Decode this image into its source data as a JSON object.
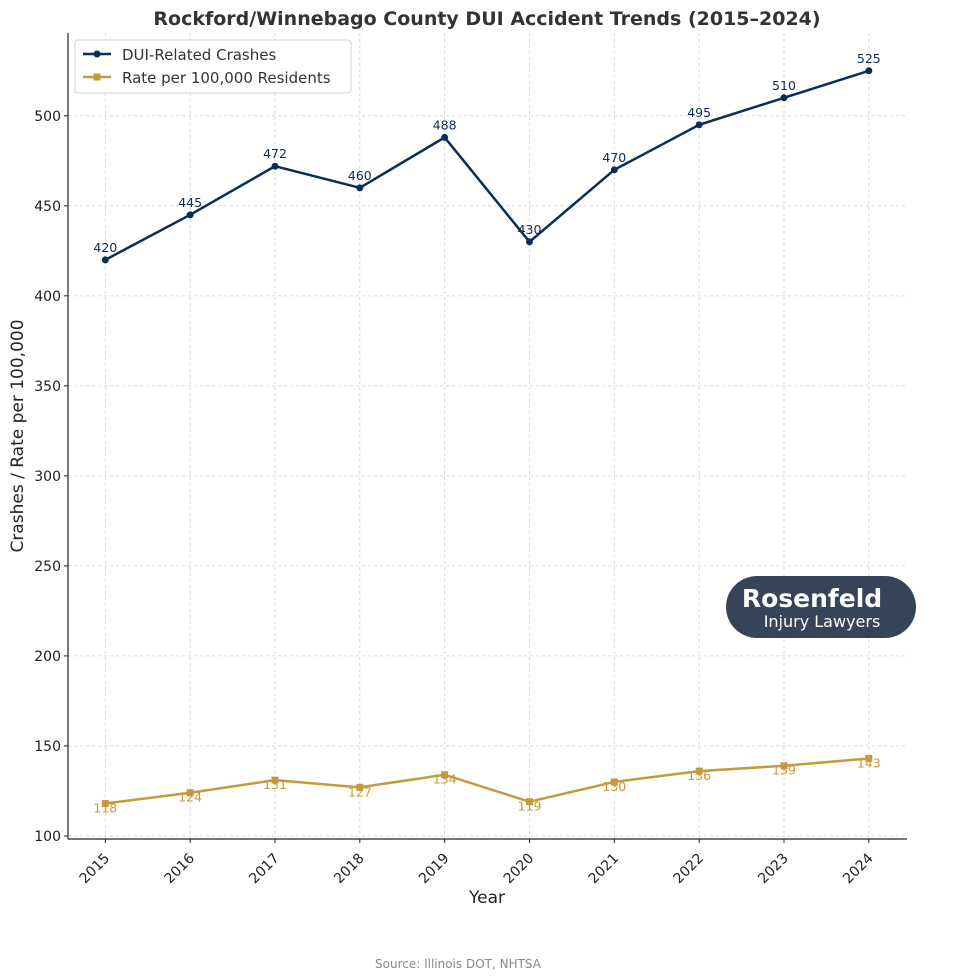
{
  "chart_data": {
    "type": "line",
    "title": "Rockford/Winnebago County DUI Accident Trends (2015–2024)",
    "xlabel": "Year",
    "ylabel": "Crashes / Rate per 100,000",
    "x": [
      2015,
      2016,
      2017,
      2018,
      2019,
      2020,
      2021,
      2022,
      2023,
      2024
    ],
    "x_ticks": [
      "2015",
      "2016",
      "2017",
      "2018",
      "2019",
      "2020",
      "2021",
      "2022",
      "2023",
      "2024"
    ],
    "y_ticks": [
      100,
      150,
      200,
      250,
      300,
      350,
      400,
      450,
      500
    ],
    "ylim": [
      98.3,
      546
    ],
    "xlim": [
      2014.56,
      2024.45
    ],
    "grid": true,
    "legend_position": "top-left",
    "series": [
      {
        "name": "DUI-Related Crashes",
        "color": "#0d2d52",
        "marker": "circle",
        "values": [
          420,
          445,
          472,
          460,
          488,
          430,
          470,
          495,
          510,
          525
        ]
      },
      {
        "name": "Rate per 100,000 Residents",
        "color": "#c69a3a",
        "marker": "square",
        "values": [
          118,
          124,
          131,
          127,
          134,
          119,
          130,
          136,
          139,
          143
        ]
      }
    ]
  },
  "logo": {
    "line1": "Rosenfeld",
    "line2": "Injury Lawyers"
  },
  "source": "Source: Illinois DOT, NHTSA"
}
